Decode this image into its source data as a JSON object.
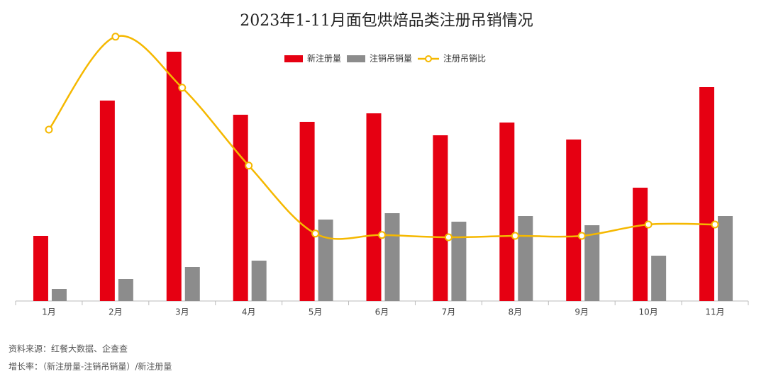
{
  "chart_data": {
    "type": "bar",
    "title": "2023年1-11月面包烘焙品类注册吊销情况",
    "categories": [
      "1月",
      "2月",
      "3月",
      "4月",
      "5月",
      "6月",
      "7月",
      "8月",
      "9月",
      "10月",
      "11月"
    ],
    "series": [
      {
        "name": "新注册量",
        "color": "#e60012",
        "values": [
          92,
          283,
          352,
          263,
          253,
          265,
          234,
          252,
          228,
          160,
          302
        ]
      },
      {
        "name": "注销吊销量",
        "color": "#8c8c8c",
        "values": [
          17,
          31,
          48,
          57,
          115,
          124,
          112,
          120,
          107,
          64,
          120
        ]
      },
      {
        "name": "注册吊销比",
        "color": "#f5b800",
        "type": "line",
        "axis": "y2",
        "values": [
          60.5,
          93.3,
          75.3,
          47.8,
          23.8,
          23.3,
          22.5,
          23,
          23,
          27,
          27
        ]
      }
    ],
    "ylim": [
      0,
      400
    ],
    "y2lim": [
      0,
      100
    ],
    "notes": [
      "资料来源：红餐大数据、企查查",
      "增长率：（新注册量-注销吊销量）/新注册量"
    ]
  }
}
